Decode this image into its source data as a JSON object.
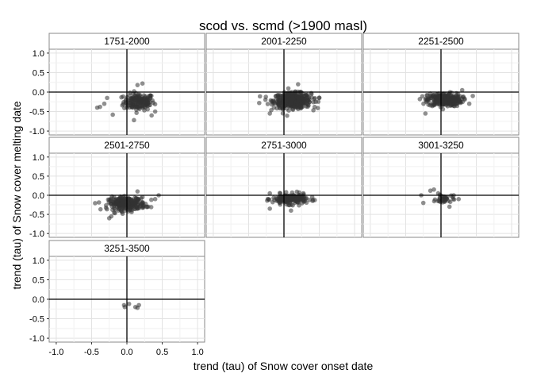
{
  "chart_data": {
    "type": "scatter",
    "title": "scod vs. scmd (>1900 masl)",
    "xlabel": "trend (tau) of Snow cover onset date",
    "ylabel": "trend (tau) of Snow cover melting date",
    "xlim": [
      -1.1,
      1.1
    ],
    "ylim": [
      -1.1,
      1.1
    ],
    "x_ticks": [
      -1.0,
      -0.5,
      0.0,
      0.5,
      1.0
    ],
    "x_tick_labels": [
      "-1.0",
      "-0.5",
      "0.0",
      "0.5",
      "1.0"
    ],
    "y_ticks": [
      -1.0,
      -0.5,
      0.0,
      0.5,
      1.0
    ],
    "y_tick_labels": [
      "-1.0",
      "-0.5",
      "0.0",
      "0.5",
      "1.0"
    ],
    "grid": true,
    "reference_lines": {
      "x": 0,
      "y": 0
    },
    "point_color": "#333333",
    "point_opacity": 0.55,
    "panels": [
      {
        "label": "1751-2000",
        "cluster": {
          "cx": 0.17,
          "cy": -0.25,
          "sx": 0.18,
          "sy": 0.18,
          "n": 160
        },
        "extra_points": [
          [
            -0.42,
            -0.4
          ],
          [
            -0.38,
            -0.38
          ],
          [
            -0.32,
            -0.3
          ],
          [
            -0.28,
            -0.15
          ],
          [
            -0.2,
            -0.58
          ],
          [
            0.22,
            0.22
          ],
          [
            0.15,
            0.18
          ],
          [
            0.4,
            -0.5
          ],
          [
            0.35,
            -0.6
          ],
          [
            0.1,
            -0.72
          ]
        ]
      },
      {
        "label": "2001-2250",
        "cluster": {
          "cx": 0.12,
          "cy": -0.22,
          "sx": 0.22,
          "sy": 0.16,
          "n": 420
        },
        "extra_points": [
          [
            -0.35,
            -0.28
          ],
          [
            -0.2,
            -0.55
          ],
          [
            0.45,
            -0.25
          ],
          [
            0.5,
            -0.15
          ],
          [
            0.2,
            0.2
          ]
        ]
      },
      {
        "label": "2251-2500",
        "cluster": {
          "cx": 0.05,
          "cy": -0.2,
          "sx": 0.2,
          "sy": 0.14,
          "n": 300
        },
        "extra_points": [
          [
            -0.22,
            -0.55
          ],
          [
            0.4,
            -0.3
          ],
          [
            0.45,
            -0.1
          ],
          [
            0.3,
            0.05
          ]
        ]
      },
      {
        "label": "2501-2750",
        "cluster": {
          "cx": 0.0,
          "cy": -0.22,
          "sx": 0.22,
          "sy": 0.14,
          "n": 260
        },
        "extra_points": [
          [
            -0.25,
            -0.6
          ],
          [
            -0.22,
            -0.55
          ],
          [
            0.4,
            -0.1
          ],
          [
            0.45,
            0.0
          ],
          [
            0.15,
            0.1
          ]
        ]
      },
      {
        "label": "2751-3000",
        "cluster": {
          "cx": 0.08,
          "cy": -0.1,
          "sx": 0.2,
          "sy": 0.11,
          "n": 200
        },
        "extra_points": [
          [
            -0.2,
            0.05
          ],
          [
            -0.2,
            -0.35
          ],
          [
            0.4,
            -0.05
          ],
          [
            0.1,
            -0.4
          ]
        ]
      },
      {
        "label": "3001-3250",
        "cluster": {
          "cx": 0.05,
          "cy": -0.1,
          "sx": 0.1,
          "sy": 0.1,
          "n": 35
        },
        "extra_points": [
          [
            -0.28,
            0.0
          ],
          [
            -0.15,
            0.12
          ],
          [
            -0.1,
            0.15
          ],
          [
            -0.25,
            -0.2
          ],
          [
            0.18,
            0.0
          ],
          [
            0.25,
            -0.1
          ],
          [
            0.12,
            -0.3
          ]
        ]
      },
      {
        "label": "3251-3500",
        "cluster": null,
        "extra_points": [
          [
            -0.04,
            -0.15
          ],
          [
            -0.03,
            -0.2
          ],
          [
            0.03,
            -0.12
          ],
          [
            0.12,
            -0.2
          ],
          [
            0.17,
            -0.15
          ],
          [
            0.15,
            -0.22
          ]
        ]
      }
    ]
  }
}
